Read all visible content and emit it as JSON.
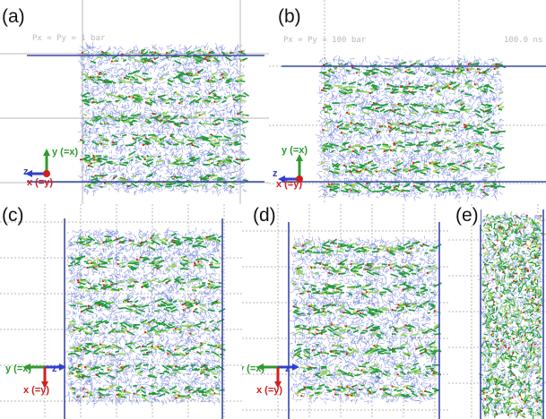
{
  "panels": [
    {
      "id": "a",
      "label": "(a)",
      "hud": "Px = Py = 1 bar",
      "axis": {
        "up": "y (=x)",
        "left": "z",
        "down": "x (=y)"
      }
    },
    {
      "id": "b",
      "label": "(b)",
      "hud": "Px = Py = 100 bar",
      "hud_right": "100.0 ns",
      "axis": {
        "up": "y (=x)",
        "left": "z",
        "down": "x (=y)"
      }
    },
    {
      "id": "c",
      "label": "(c)",
      "axis": {
        "left": "y (=x)",
        "right": "z",
        "down": "x (=y)"
      }
    },
    {
      "id": "d",
      "label": "(d)",
      "axis": {
        "left": "y (=x)",
        "right": "z",
        "down": "x (=y)"
      }
    },
    {
      "id": "e",
      "label": "(e)"
    }
  ],
  "colors": {
    "water": "#6f7fd8",
    "chain": "#1f9a3a",
    "chain_light": "#8fd35a",
    "oxygen": "#d81e1e",
    "sulfur": "#d8d020",
    "box": "#3a4aa8",
    "grid": "#b8b8b8",
    "axis_green": "#2f9a2f",
    "axis_blue": "#2f3fcf",
    "axis_red": "#d02020"
  }
}
